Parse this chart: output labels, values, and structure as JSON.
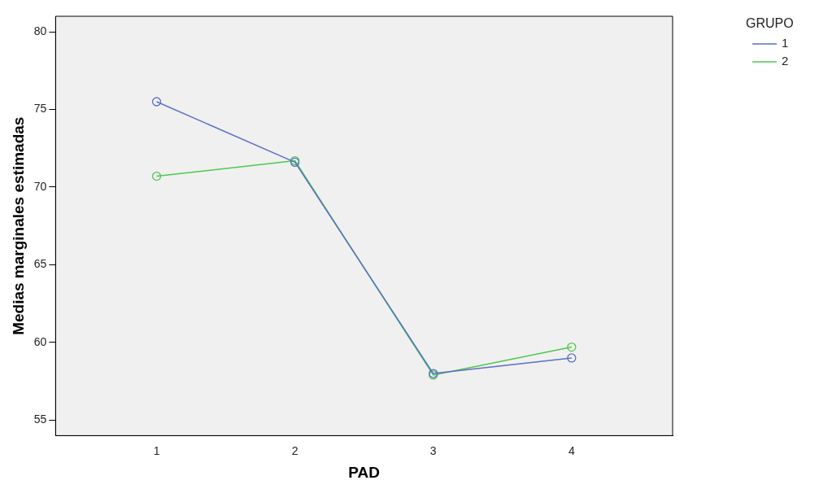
{
  "chart_data": {
    "type": "line",
    "xlabel": "PAD",
    "ylabel": "Medias marginales estimadas",
    "legend_title": "GRUPO",
    "categories": [
      "1",
      "2",
      "3",
      "4"
    ],
    "series": [
      {
        "name": "1",
        "color": "#5b6fc8",
        "values": [
          75.5,
          71.6,
          58.0,
          59.0
        ]
      },
      {
        "name": "2",
        "color": "#4ec94e",
        "values": [
          70.7,
          71.7,
          57.9,
          59.7
        ]
      }
    ],
    "ylim": [
      54,
      81
    ],
    "yticks": [
      55,
      60,
      65,
      70,
      75,
      80
    ],
    "grid": false,
    "legend": "top right",
    "marker": "circle",
    "line_style": "solid"
  }
}
